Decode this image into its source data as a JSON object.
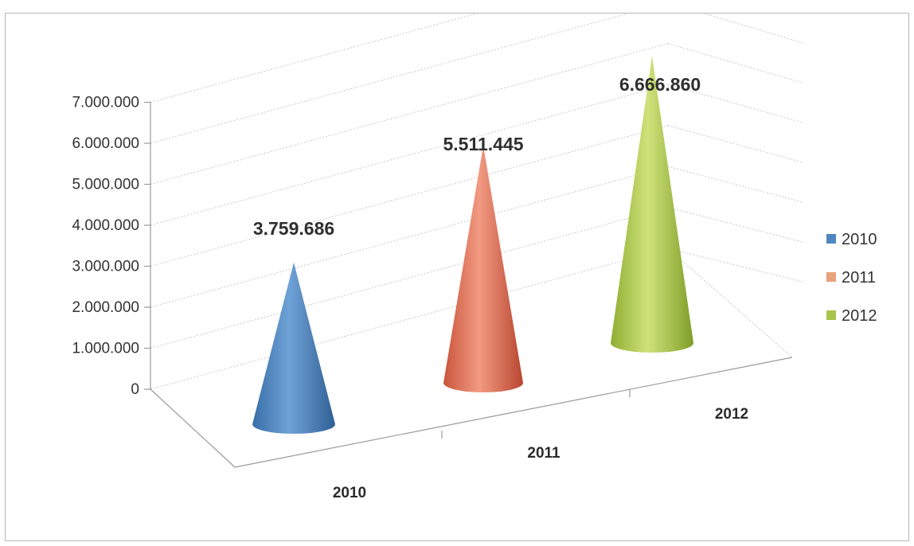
{
  "chart_data": {
    "type": "bar",
    "shape": "cone",
    "three_d": true,
    "categories": [
      "2010",
      "2011",
      "2012"
    ],
    "series": [
      {
        "name": "2010",
        "values": [
          3759686,
          null,
          null
        ],
        "color": "#4f86c0"
      },
      {
        "name": "2011",
        "values": [
          null,
          5511445,
          null
        ],
        "color": "#e07860"
      },
      {
        "name": "2012",
        "values": [
          null,
          null,
          6666860
        ],
        "color": "#a9c44c"
      }
    ],
    "data_labels": [
      "3.759.686",
      "5.511.445",
      "6.666.860"
    ],
    "y_ticks": [
      "0",
      "1.000.000",
      "2.000.000",
      "3.000.000",
      "4.000.000",
      "5.000.000",
      "6.000.000",
      "7.000.000"
    ],
    "ylim": [
      0,
      7000000
    ],
    "grid": true,
    "legend": {
      "position": "right",
      "entries": [
        {
          "label": "2010",
          "color": "#4f86c0"
        },
        {
          "label": "2011",
          "color": "#e9a27c"
        },
        {
          "label": "2012",
          "color": "#a9c44c"
        }
      ]
    }
  }
}
